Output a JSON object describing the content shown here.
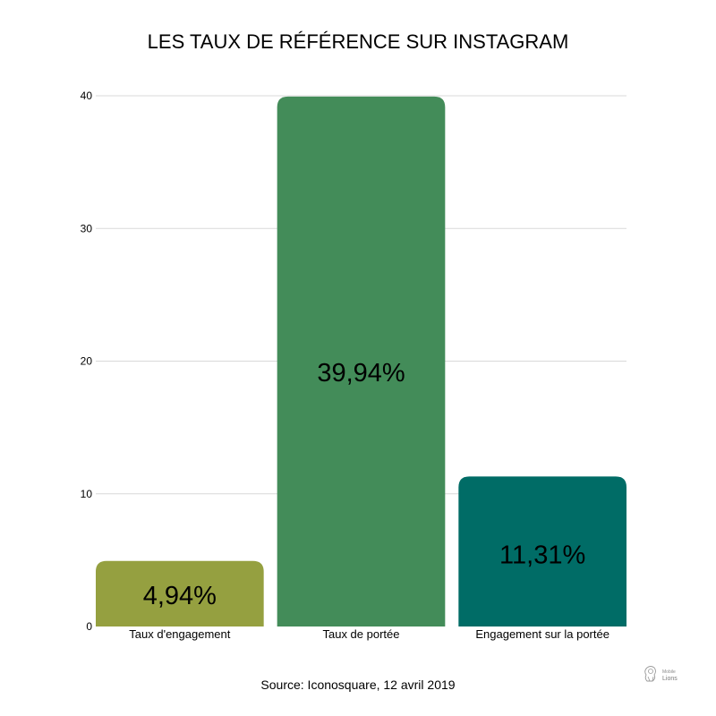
{
  "chart_data": {
    "type": "bar",
    "title": "LES TAUX DE RÉFÉRENCE SUR INSTAGRAM",
    "categories": [
      "Taux d'engagement",
      "Taux de portée",
      "Engagement sur la portée"
    ],
    "values": [
      4.94,
      39.94,
      11.31
    ],
    "data_labels": [
      "4,94%",
      "39,94%",
      "11,31%"
    ],
    "colors": [
      "#95a040",
      "#438c59",
      "#006c66"
    ],
    "yticks": [
      0,
      10,
      20,
      30,
      40
    ],
    "ylim": [
      0,
      40
    ],
    "grid": true,
    "legend": "none",
    "xlabel": "",
    "ylabel": ""
  },
  "source": "Source: Iconosquare, 12 avril 2019",
  "logo": {
    "icon": "lion-logo-icon",
    "text": "Lions",
    "subtext": "Mobile"
  }
}
